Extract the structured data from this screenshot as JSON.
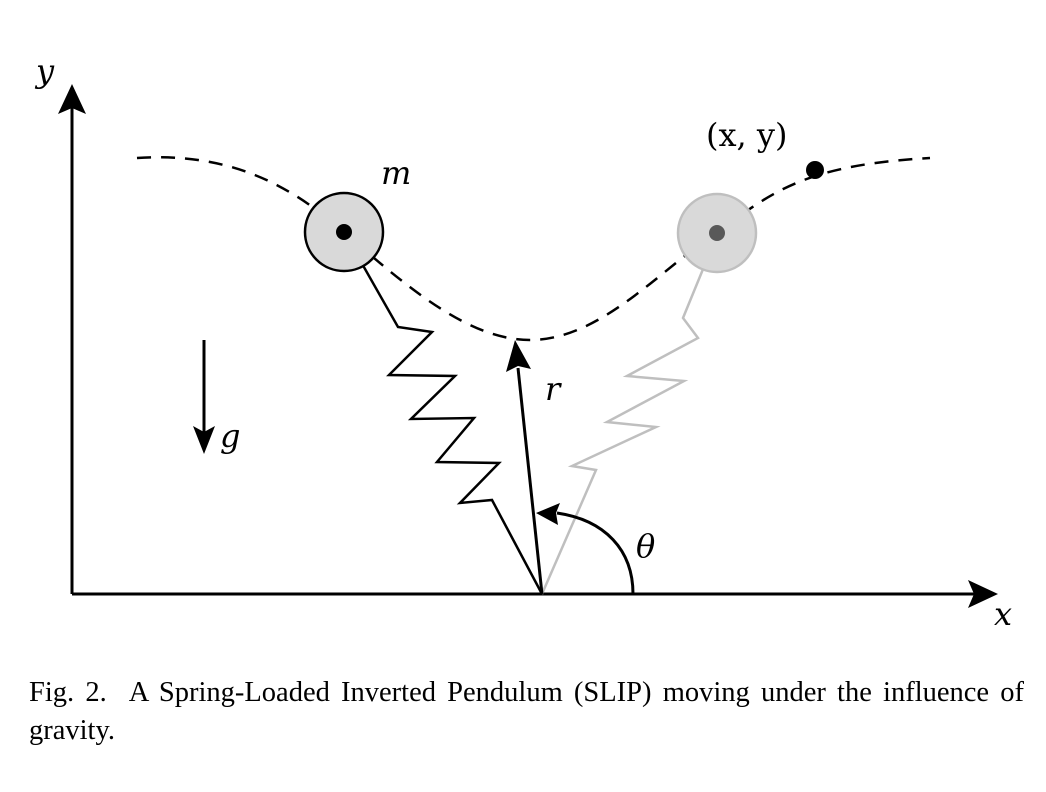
{
  "labels": {
    "y_axis": "y",
    "x_axis": "x",
    "mass": "m",
    "position": "(x, y)",
    "leg_length": "r",
    "gravity": "g",
    "angle": "θ"
  },
  "caption": {
    "figure_label": "Fig. 2.",
    "text": "A Spring-Loaded Inverted Pendulum (SLIP) moving under the influence of gravity."
  },
  "colors": {
    "ink": "#000000",
    "mass_fill": "#d9d9d9",
    "ghost_fill": "#d9d9d9",
    "ghost_stroke": "#bfbfbf",
    "ghost_dot": "#595959"
  }
}
